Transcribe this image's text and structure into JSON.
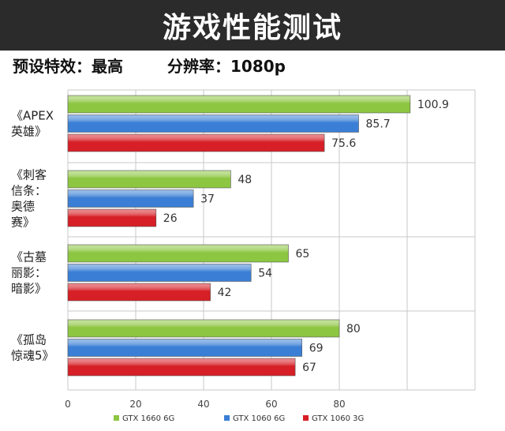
{
  "title": "游戏性能测试",
  "subtitle": {
    "left": "预设特效：最高",
    "right": "分辨率：1080p"
  },
  "colors": {
    "green": "#8dc641",
    "blue": "#3a7fd5",
    "red": "#d61f26"
  },
  "chart_data": {
    "type": "bar",
    "orientation": "horizontal",
    "categories": [
      [
        "《APEX",
        "英雄》"
      ],
      [
        "《刺客",
        "信条：",
        "奥德",
        "赛》"
      ],
      [
        "《古墓",
        "丽影：",
        "暗影》"
      ],
      [
        "《孤岛",
        "惊魂5》"
      ]
    ],
    "series": [
      {
        "name": "GTX 1660 6G",
        "color": "#8dc641",
        "values": [
          100.9,
          48,
          65,
          80
        ]
      },
      {
        "name": "GTX 1060 6G",
        "color": "#3a7fd5",
        "values": [
          85.7,
          37,
          54,
          69
        ]
      },
      {
        "name": "GTX 1060 3G",
        "color": "#d61f26",
        "values": [
          75.6,
          26,
          42,
          67
        ]
      }
    ],
    "value_labels": [
      [
        "100.9",
        "48",
        "65",
        "80"
      ],
      [
        "85.7",
        "37",
        "54",
        "69"
      ],
      [
        "75.6",
        "26",
        "42",
        "67"
      ]
    ],
    "xticks": [
      "0",
      "20",
      "40",
      "60",
      "80"
    ],
    "xlim": [
      0,
      120
    ],
    "grid": true,
    "legend": "bottom"
  }
}
